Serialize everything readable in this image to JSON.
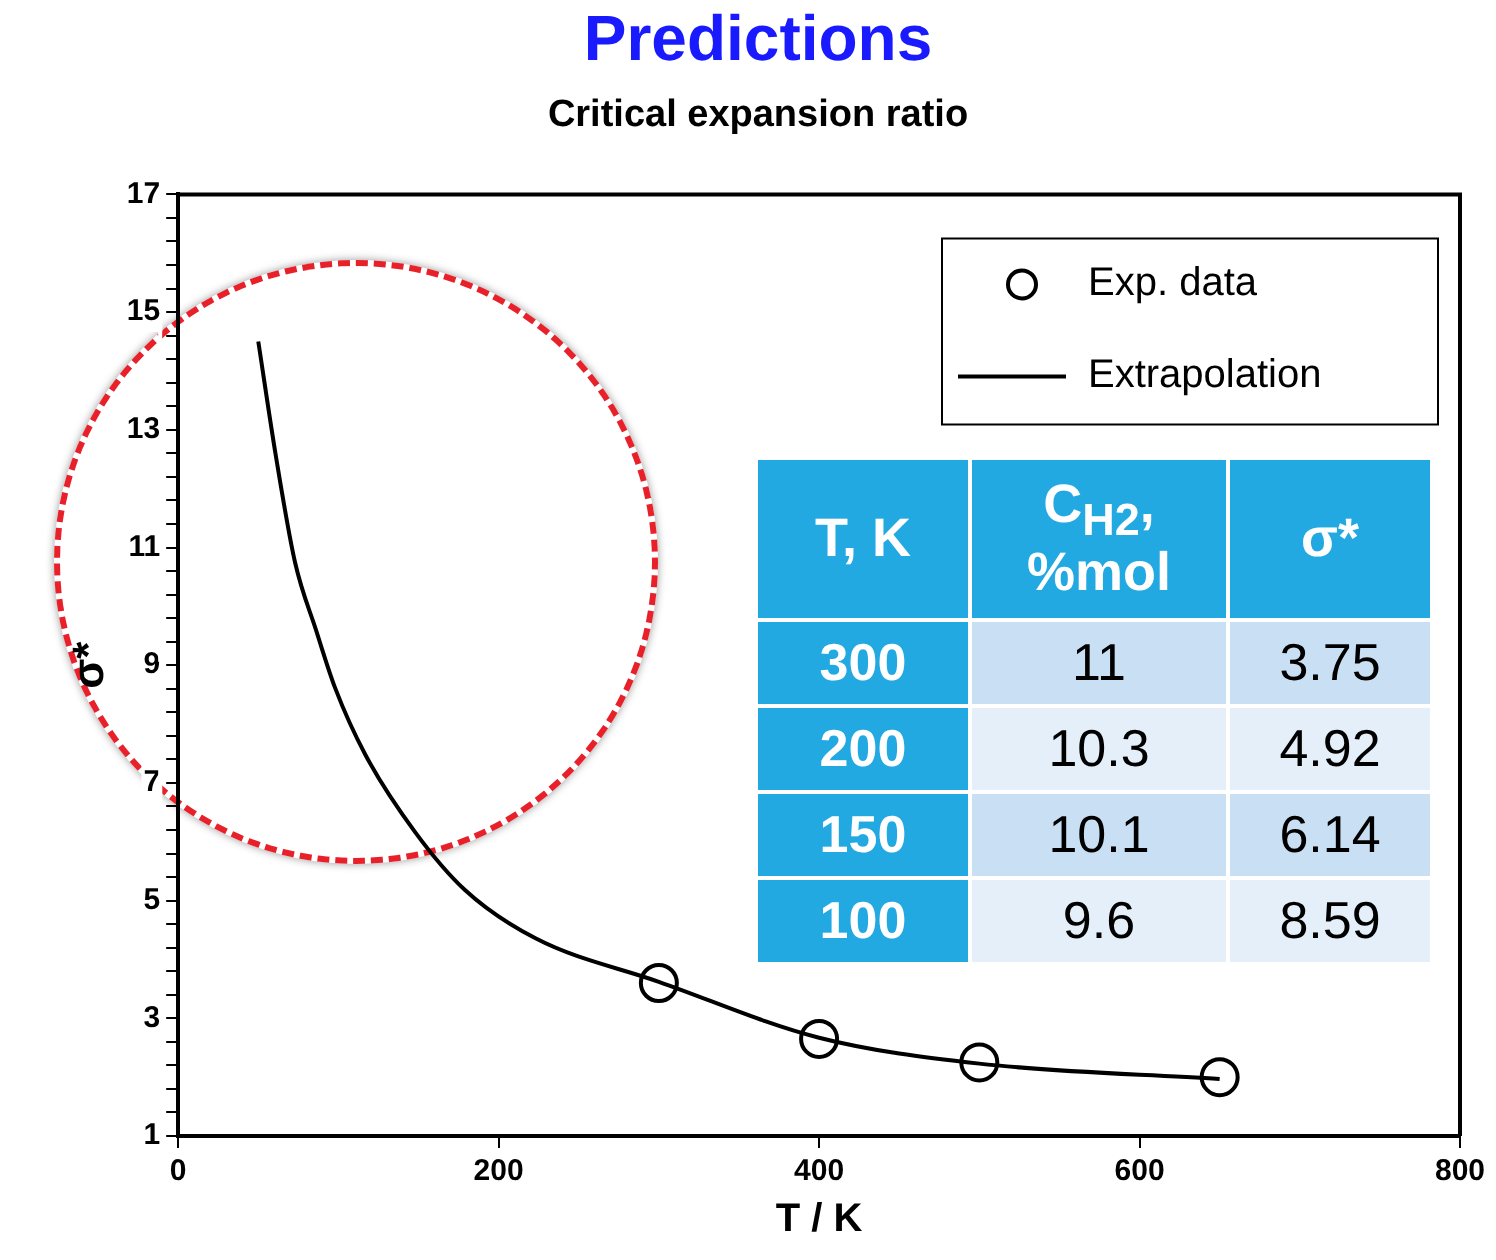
{
  "chart_data": {
    "type": "line",
    "title": "Predictions",
    "subtitle": "Critical expansion ratio",
    "xlabel": "T / K",
    "ylabel": "σ*",
    "xlim": [
      0,
      800
    ],
    "xticks": [
      0,
      200,
      400,
      600,
      800
    ],
    "ylim": [
      1,
      17
    ],
    "yticks": [
      1,
      {
        "value": 1.4,
        "label": null
      },
      {
        "value": 1.8,
        "label": null
      },
      {
        "value": 2.2,
        "label": null
      },
      {
        "value": 2.6,
        "label": null
      },
      3,
      {
        "value": 3.4,
        "label": null
      },
      {
        "value": 3.8,
        "label": null
      },
      {
        "value": 4.2,
        "label": null
      },
      {
        "value": 4.6,
        "label": null
      },
      5,
      {
        "value": 5.4,
        "label": null
      },
      {
        "value": 5.8,
        "label": null
      },
      {
        "value": 6.2,
        "label": null
      },
      {
        "value": 6.6,
        "label": null
      },
      7,
      {
        "value": 7.4,
        "label": null
      },
      {
        "value": 7.8,
        "label": null
      },
      {
        "value": 8.2,
        "label": null
      },
      {
        "value": 8.6,
        "label": null
      },
      9,
      {
        "value": 9.4,
        "label": null
      },
      {
        "value": 9.8,
        "label": null
      },
      {
        "value": 10.2,
        "label": null
      },
      {
        "value": 10.6,
        "label": null
      },
      11,
      {
        "value": 11.4,
        "label": null
      },
      {
        "value": 11.8,
        "label": null
      },
      {
        "value": 12.2,
        "label": null
      },
      {
        "value": 12.6,
        "label": null
      },
      13,
      {
        "value": 13.4,
        "label": null
      },
      {
        "value": 13.8,
        "label": null
      },
      {
        "value": 14.2,
        "label": null
      },
      {
        "value": 14.6,
        "label": null
      },
      15,
      {
        "value": 15.4,
        "label": null
      },
      {
        "value": 15.8,
        "label": null
      },
      {
        "value": 16.2,
        "label": null
      },
      {
        "value": 16.6,
        "label": null
      },
      17
    ],
    "grid": false,
    "legend": "top right",
    "series": [
      {
        "name": "Exp. data",
        "type": "scatter",
        "color": "#000000",
        "marker": "circle",
        "x": [
          300,
          400,
          500,
          650
        ],
        "values": [
          3.6,
          2.65,
          2.25,
          2.0
        ]
      },
      {
        "name": "Extrapolation",
        "color": "#000000",
        "marker": "none",
        "line_style": "solid",
        "x": [
          50,
          61,
          73,
          86,
          98,
          117,
          148,
          179,
          223,
          300,
          400,
          500,
          650
        ],
        "values": [
          14.5,
          12.55,
          10.74,
          9.6,
          8.61,
          7.47,
          6.16,
          5.18,
          4.36,
          3.62,
          2.67,
          2.23,
          1.97
        ]
      }
    ],
    "annotations": [
      "T, K",
      "C$_{H2}$, %mol",
      "σ*",
      "300",
      "11",
      "3.75",
      "200",
      "10.3",
      "4.92",
      "150",
      "10.1",
      "6.14",
      "100",
      "9.6",
      "8.59"
    ]
  }
}
